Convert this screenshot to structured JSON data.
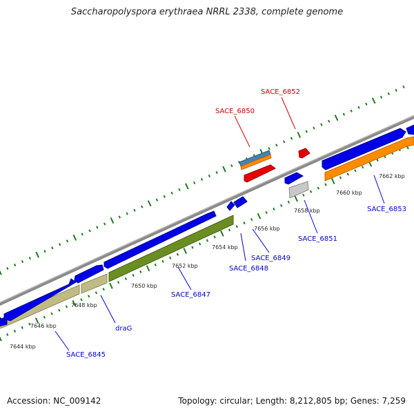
{
  "title": "Saccharopolyspora erythraea NRRL 2338, complete genome",
  "footer": {
    "accession": "Accession: NC_009142",
    "summary": "Topology: circular; Length: 8,212,805 bp; Genes: 7,259"
  },
  "colors": {
    "backbone": "#8a8a8a",
    "tick": "#1a7a1a",
    "gene_blue": "#0000e6",
    "gene_khaki": "#bfbb85",
    "gene_olive": "#6b8e23",
    "gene_orange": "#ff8c00",
    "gene_red": "#e60000",
    "gene_gray": "#c8c8c8",
    "gene_steel": "#4682b4",
    "label_blue": "#0000cc",
    "label_red": "#cc0000"
  },
  "kbp_labels": [
    "7644 kbp",
    "7646 kbp",
    "7648 kbp",
    "7650 kbp",
    "7652 kbp",
    "7654 kbp",
    "7656 kbp",
    "7658 kbp",
    "7660 kbp",
    "7662 kbp"
  ],
  "gene_labels": {
    "sace_6845": "SACE_6845",
    "drag": "draG",
    "sace_6847": "SACE_6847",
    "sace_6848": "SACE_6848",
    "sace_6849": "SACE_6849",
    "sace_6850": "SACE_6850",
    "sace_6851": "SACE_6851",
    "sace_6852": "SACE_6852",
    "sace_6853": "SACE_6853"
  }
}
